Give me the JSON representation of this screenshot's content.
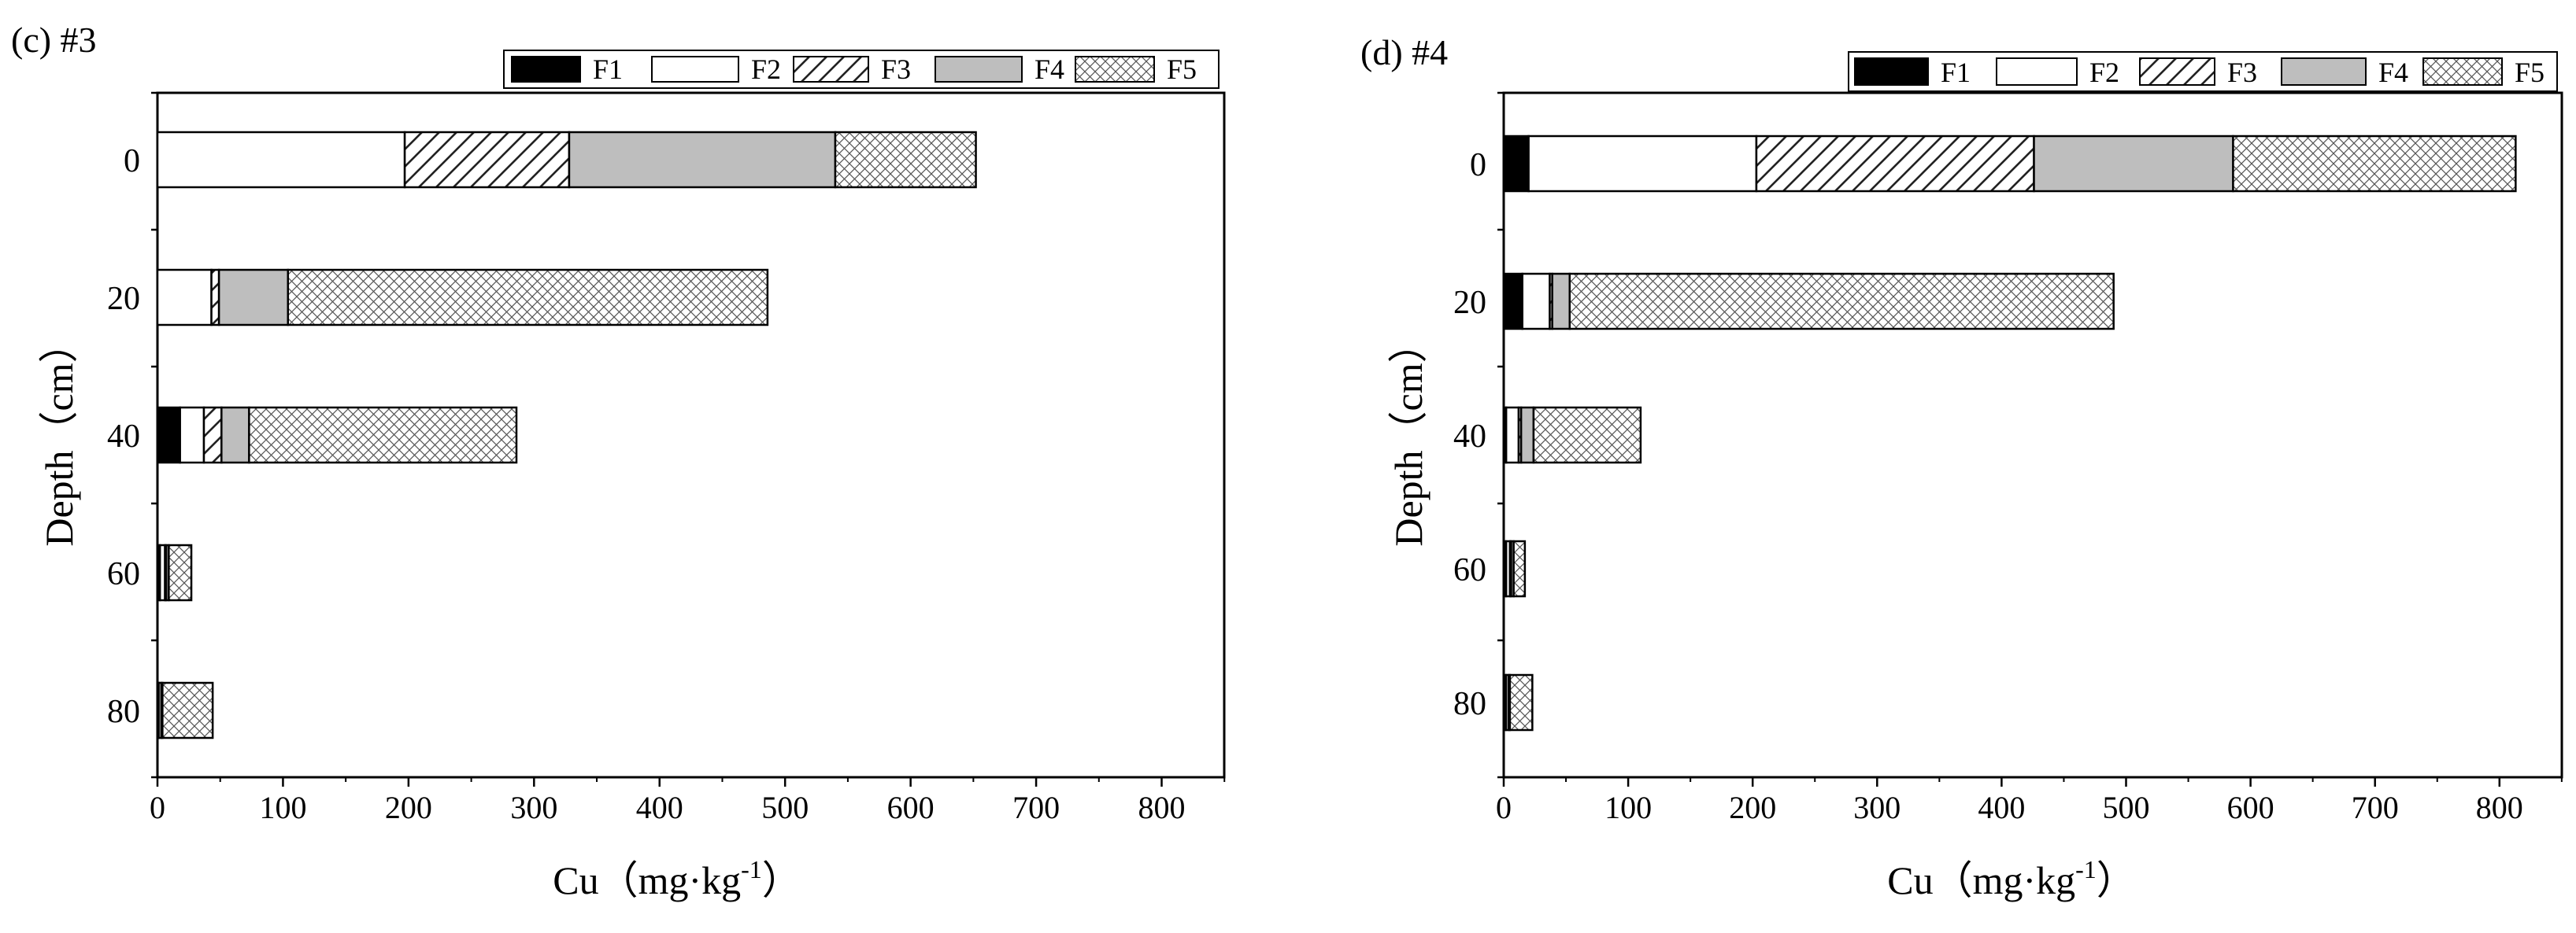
{
  "chart_data": [
    {
      "type": "bar",
      "orientation": "horizontal",
      "stacked": true,
      "title": "(c) #3",
      "xlabel": "Cu（mg·kg",
      "xlabel_sup": "-1",
      "xlabel_close": "）",
      "ylabel": "Depth（cm）",
      "xlim": [
        0,
        850
      ],
      "xticks": [
        "0",
        "100",
        "200",
        "300",
        "400",
        "500",
        "600",
        "700",
        "800"
      ],
      "categories": [
        "0",
        "20",
        "40",
        "60",
        "80"
      ],
      "series": [
        {
          "name": "F1",
          "values": [
            0,
            0,
            18,
            2,
            1
          ]
        },
        {
          "name": "F2",
          "values": [
            197,
            43,
            19,
            4,
            2
          ]
        },
        {
          "name": "F3",
          "values": [
            131,
            6,
            14,
            1,
            0
          ]
        },
        {
          "name": "F4",
          "values": [
            212,
            55,
            22,
            2,
            1
          ]
        },
        {
          "name": "F5",
          "values": [
            112,
            382,
            213,
            18,
            40
          ]
        }
      ],
      "legend_position": "top-right",
      "grid": false
    },
    {
      "type": "bar",
      "orientation": "horizontal",
      "stacked": true,
      "title": "(d) #4",
      "xlabel": "Cu（mg·kg",
      "xlabel_sup": "-1",
      "xlabel_close": "）",
      "ylabel": "Depth（cm）",
      "xlim": [
        0,
        850
      ],
      "xticks": [
        "0",
        "100",
        "200",
        "300",
        "400",
        "500",
        "600",
        "700",
        "800"
      ],
      "categories": [
        "0",
        "20",
        "40",
        "60",
        "80"
      ],
      "series": [
        {
          "name": "F1",
          "values": [
            20,
            15,
            2,
            2,
            2
          ]
        },
        {
          "name": "F2",
          "values": [
            183,
            22,
            10,
            3,
            2
          ]
        },
        {
          "name": "F3",
          "values": [
            223,
            2,
            2,
            1,
            0
          ]
        },
        {
          "name": "F4",
          "values": [
            160,
            14,
            10,
            2,
            1
          ]
        },
        {
          "name": "F5",
          "values": [
            227,
            437,
            86,
            9,
            18
          ]
        }
      ],
      "legend_position": "top-right",
      "grid": false
    }
  ],
  "series_styles": {
    "F1": "solid-black",
    "F2": "white",
    "F3": "diagonal-hatch",
    "F4": "gray",
    "F5": "crosshatch"
  },
  "colors": {
    "frame": "#000000",
    "f1": "#000000",
    "f2": "#ffffff",
    "f4": "#bebebe",
    "hatch": "#222222",
    "cross": "#555555"
  }
}
